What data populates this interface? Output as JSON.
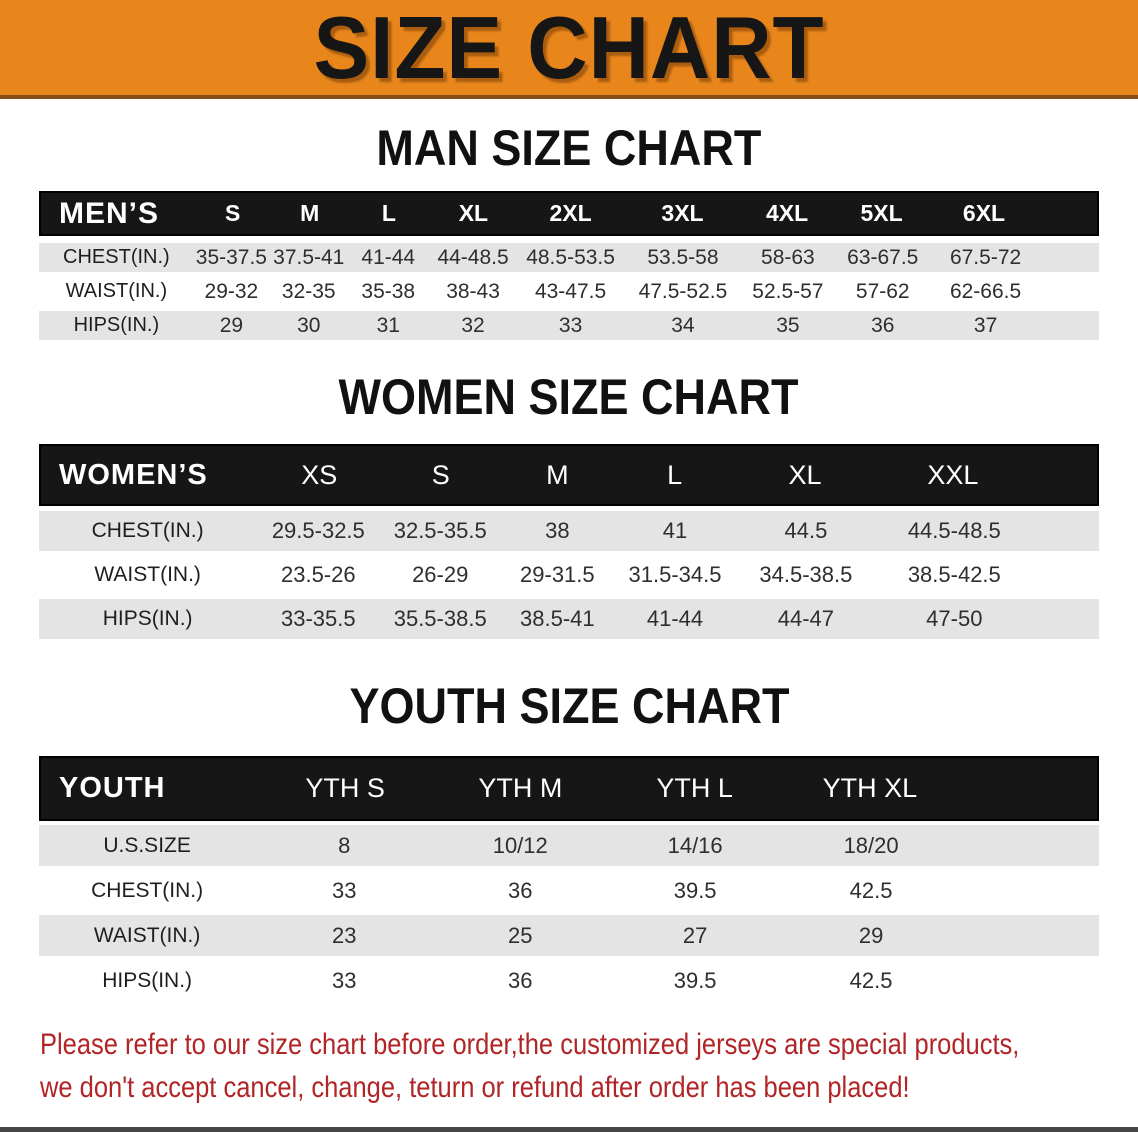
{
  "banner": {
    "title": "SIZE CHART",
    "background_color": "#e8861c"
  },
  "sections": {
    "man": {
      "heading": "MAN SIZE CHART"
    },
    "women": {
      "heading": "WOMEN SIZE CHART"
    },
    "youth": {
      "heading": "YOUTH SIZE CHART"
    }
  },
  "tables": {
    "men": {
      "label": "MEN’S",
      "columns": [
        "S",
        "M",
        "L",
        "XL",
        "2XL",
        "3XL",
        "4XL",
        "5XL",
        "6XL"
      ],
      "rows": [
        {
          "label": "CHEST(IN.)",
          "cells": [
            "35-37.5",
            "37.5-41",
            "41-44",
            "44-48.5",
            "48.5-53.5",
            "53.5-58",
            "58-63",
            "63-67.5",
            "67.5-72"
          ]
        },
        {
          "label": "WAIST(IN.)",
          "cells": [
            "29-32",
            "32-35",
            "35-38",
            "38-43",
            "43-47.5",
            "47.5-52.5",
            "52.5-57",
            "57-62",
            "62-66.5"
          ]
        },
        {
          "label": "HIPS(IN.)",
          "cells": [
            "29",
            "30",
            "31",
            "32",
            "33",
            "34",
            "35",
            "36",
            "37"
          ]
        }
      ]
    },
    "women": {
      "label": "WOMEN’S",
      "columns": [
        "XS",
        "S",
        "M",
        "L",
        "XL",
        "XXL"
      ],
      "rows": [
        {
          "label": "CHEST(IN.)",
          "cells": [
            "29.5-32.5",
            "32.5-35.5",
            "38",
            "41",
            "44.5",
            "44.5-48.5"
          ]
        },
        {
          "label": "WAIST(IN.)",
          "cells": [
            "23.5-26",
            "26-29",
            "29-31.5",
            "31.5-34.5",
            "34.5-38.5",
            "38.5-42.5"
          ]
        },
        {
          "label": "HIPS(IN.)",
          "cells": [
            "33-35.5",
            "35.5-38.5",
            "38.5-41",
            "41-44",
            "44-47",
            "47-50"
          ]
        }
      ]
    },
    "youth": {
      "label": "YOUTH",
      "columns": [
        "YTH S",
        "YTH M",
        "YTH L",
        "YTH XL"
      ],
      "rows": [
        {
          "label": "U.S.SIZE",
          "cells": [
            "8",
            "10/12",
            "14/16",
            "18/20"
          ]
        },
        {
          "label": "CHEST(IN.)",
          "cells": [
            "33",
            "36",
            "39.5",
            "42.5"
          ]
        },
        {
          "label": "WAIST(IN.)",
          "cells": [
            "23",
            "25",
            "27",
            "29"
          ]
        },
        {
          "label": "HIPS(IN.)",
          "cells": [
            "33",
            "36",
            "39.5",
            "42.5"
          ]
        }
      ]
    }
  },
  "disclaimer": {
    "line1": "Please refer to our size chart before order,the customized jerseys are special products,",
    "line2": "we don't accept cancel, change, teturn or refund after order has been placed!",
    "text_color": "#b12527"
  }
}
